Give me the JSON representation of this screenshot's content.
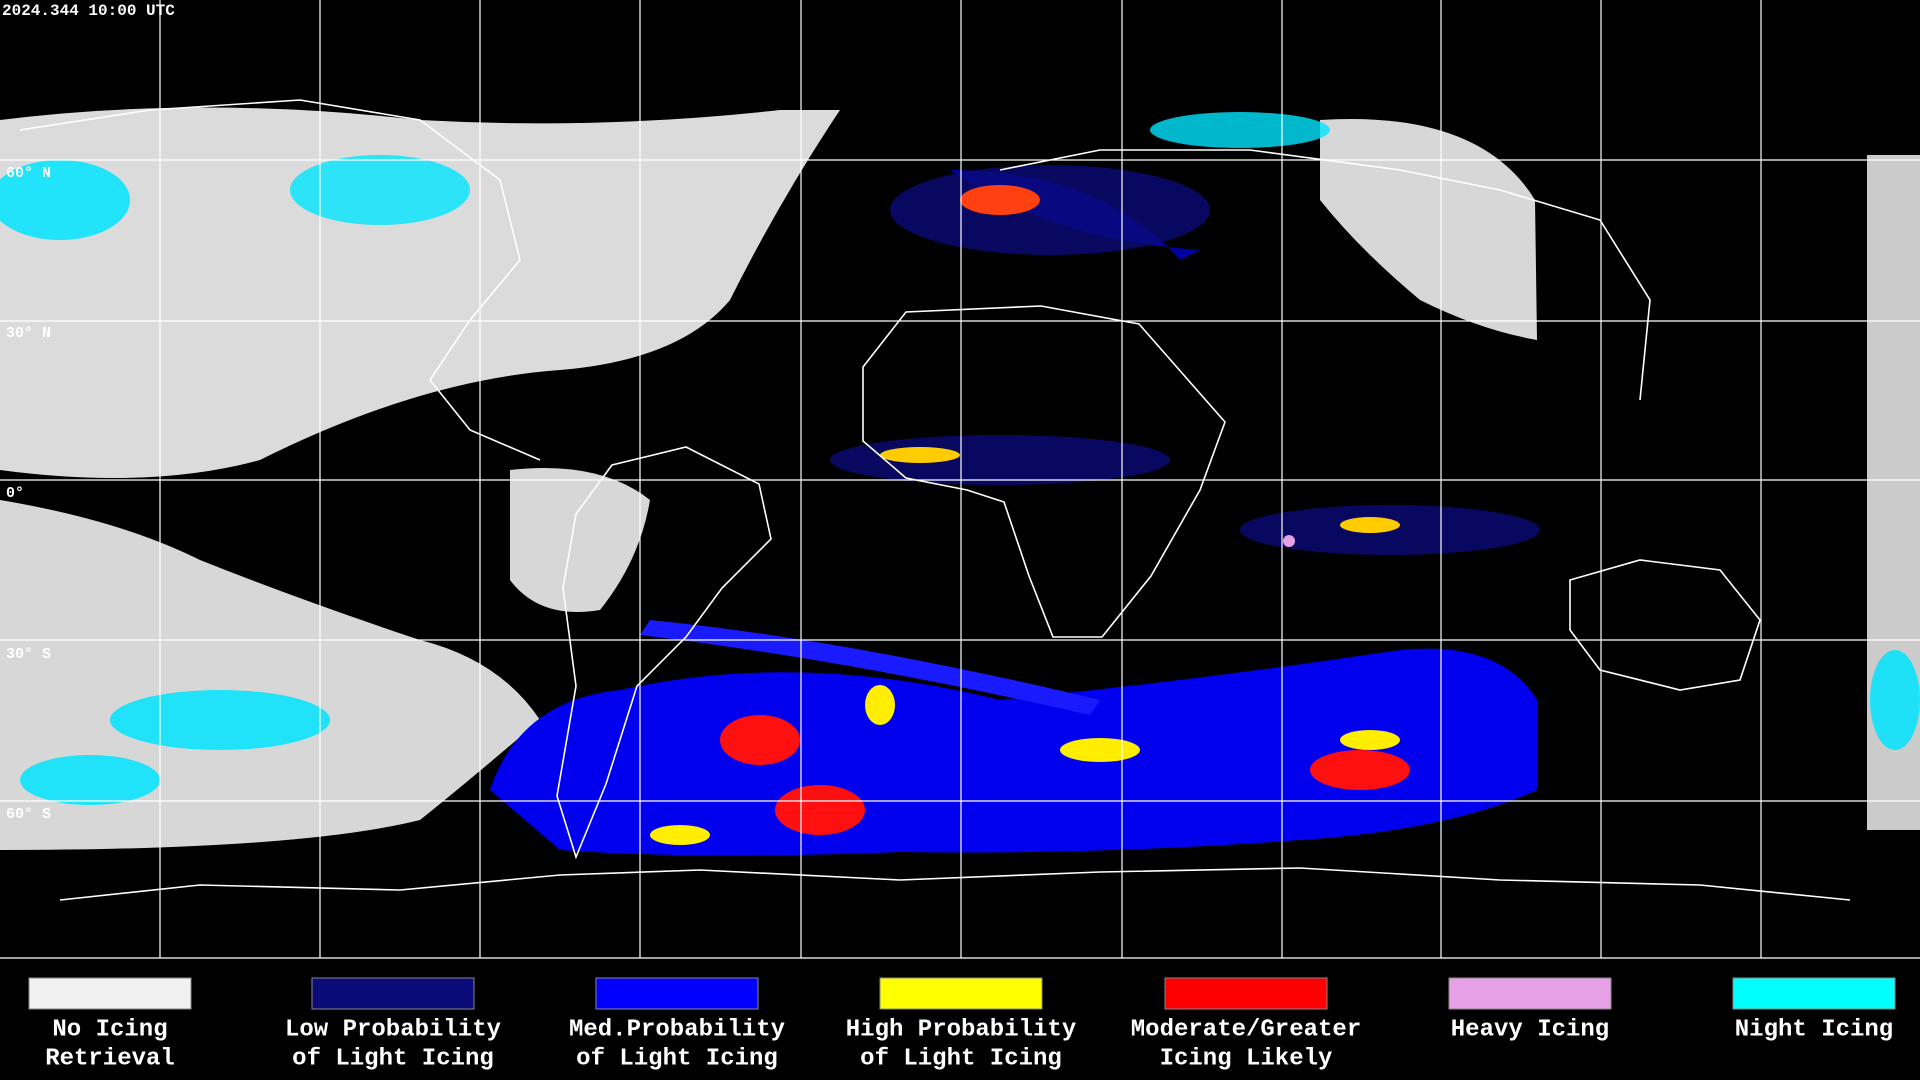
{
  "timestamp": "2024.344 10:00 UTC",
  "lat_labels": [
    "60° N",
    "30° N",
    "0°",
    "30° S",
    "60° S"
  ],
  "legend": [
    {
      "lines": [
        "No Icing",
        "Retrieval"
      ],
      "color": "#f0f0f0"
    },
    {
      "lines": [
        "Low Probability",
        "of Light Icing"
      ],
      "color": "#0a0a78"
    },
    {
      "lines": [
        "Med.Probability",
        "of Light Icing"
      ],
      "color": "#0000ff"
    },
    {
      "lines": [
        "High Probability",
        "of Light Icing"
      ],
      "color": "#ffff00"
    },
    {
      "lines": [
        "Moderate/Greater",
        "Icing Likely"
      ],
      "color": "#ff0000"
    },
    {
      "lines": [
        "Heavy Icing"
      ],
      "color": "#e6a0e6"
    },
    {
      "lines": [
        "Night Icing"
      ],
      "color": "#00ffff"
    }
  ]
}
